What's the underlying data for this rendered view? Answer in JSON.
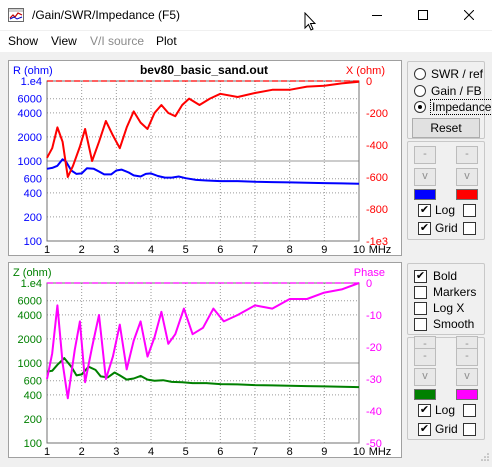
{
  "window": {
    "title": "/Gain/SWR/Impedance (F5)",
    "icon": "chart-app-icon"
  },
  "menu": [
    {
      "label": "Show",
      "enabled": true
    },
    {
      "label": "View",
      "enabled": true
    },
    {
      "label": "V/I source",
      "enabled": false
    },
    {
      "label": "Plot",
      "enabled": true
    }
  ],
  "top_controls": {
    "radios": [
      {
        "label": "SWR / ref",
        "checked": false
      },
      {
        "label": "Gain / FB",
        "checked": false
      },
      {
        "label": "Impedance",
        "checked": true
      }
    ],
    "reset_label": "Reset",
    "series_colors": [
      "#0000ff",
      "#ff0000"
    ],
    "log": {
      "label": "Log",
      "left_checked": true,
      "right_checked": false
    },
    "grid": {
      "label": "Grid",
      "left_checked": true,
      "right_checked": false
    },
    "up_btn": "-",
    "down_btn": "v"
  },
  "bottom_controls": {
    "checks": [
      {
        "label": "Bold",
        "checked": true
      },
      {
        "label": "Markers",
        "checked": false
      },
      {
        "label": "Log X",
        "checked": false
      },
      {
        "label": "Smooth",
        "checked": false
      }
    ],
    "series_colors": [
      "#008000",
      "#ff00ff"
    ],
    "log": {
      "label": "Log",
      "left_checked": true,
      "right_checked": false
    },
    "grid": {
      "label": "Grid",
      "left_checked": true,
      "right_checked": false
    },
    "up_btn": "-",
    "down_btn": "v"
  },
  "chart_data": [
    {
      "type": "line",
      "title": "bev80_basic_sand.out",
      "ylabel": "R (ohm)",
      "y2label": "X (ohm)",
      "xlabel": "MHz",
      "xlim": [
        1,
        10
      ],
      "x_ticks": [
        "1",
        "2",
        "3",
        "4",
        "5",
        "6",
        "7",
        "8",
        "9",
        "10"
      ],
      "y_scale": "log",
      "ylim": [
        100,
        10000
      ],
      "y_ticks": [
        "1.e4",
        "6000",
        "4000",
        "2000",
        "1000",
        "600",
        "400",
        "200",
        "100"
      ],
      "y2lim": [
        -1000,
        0
      ],
      "y2_ticks": [
        "0",
        "-200",
        "-400",
        "-600",
        "-800",
        "-1e3"
      ],
      "grid": true,
      "reference_line_label": "1.e4",
      "series": [
        {
          "name": "R (ohm)",
          "axis": "left",
          "color": "#0000ff",
          "x": [
            1.0,
            1.15,
            1.3,
            1.45,
            1.55,
            1.7,
            1.85,
            2.0,
            2.15,
            2.35,
            2.5,
            2.65,
            2.85,
            3.0,
            3.15,
            3.35,
            3.5,
            3.7,
            3.85,
            4.0,
            4.2,
            4.4,
            4.6,
            4.8,
            5.0,
            5.3,
            5.6,
            6.0,
            6.5,
            7.0,
            7.5,
            8.0,
            8.5,
            9.0,
            9.5,
            10.0
          ],
          "y": [
            800,
            820,
            870,
            1050,
            980,
            760,
            690,
            700,
            810,
            800,
            740,
            680,
            680,
            760,
            780,
            720,
            660,
            640,
            690,
            700,
            650,
            620,
            620,
            640,
            610,
            580,
            570,
            560,
            560,
            550,
            545,
            540,
            535,
            530,
            525,
            520
          ]
        },
        {
          "name": "X (ohm)",
          "axis": "right",
          "color": "#ff0000",
          "x": [
            1.0,
            1.15,
            1.3,
            1.45,
            1.6,
            1.75,
            1.95,
            2.1,
            2.3,
            2.5,
            2.7,
            2.9,
            3.1,
            3.3,
            3.5,
            3.7,
            3.9,
            4.1,
            4.3,
            4.5,
            4.7,
            4.9,
            5.1,
            5.4,
            5.7,
            6.0,
            6.5,
            7.0,
            7.5,
            8.0,
            8.5,
            9.0,
            9.5,
            10.0
          ],
          "y": [
            -480,
            -420,
            -290,
            -380,
            -600,
            -530,
            -410,
            -300,
            -500,
            -380,
            -250,
            -340,
            -420,
            -290,
            -190,
            -260,
            -300,
            -200,
            -150,
            -200,
            -220,
            -150,
            -110,
            -150,
            -110,
            -80,
            -100,
            -75,
            -55,
            -55,
            -35,
            -30,
            -15,
            -5
          ]
        }
      ]
    },
    {
      "type": "line",
      "ylabel": "Z (ohm)",
      "y2label": "Phase",
      "xlabel": "MHz",
      "xlim": [
        1,
        10
      ],
      "x_ticks": [
        "1",
        "2",
        "3",
        "4",
        "5",
        "6",
        "7",
        "8",
        "9",
        "10"
      ],
      "y_scale": "log",
      "ylim": [
        100,
        10000
      ],
      "y_ticks": [
        "1.e4",
        "6000",
        "4000",
        "2000",
        "1000",
        "600",
        "400",
        "200",
        "100"
      ],
      "y2lim": [
        -50,
        0
      ],
      "y2_ticks": [
        "0",
        "-10",
        "-20",
        "-30",
        "-40",
        "-50"
      ],
      "grid": true,
      "series": [
        {
          "name": "Z (ohm)",
          "axis": "left",
          "color": "#008000",
          "x": [
            1.0,
            1.15,
            1.3,
            1.5,
            1.7,
            1.85,
            2.0,
            2.2,
            2.4,
            2.55,
            2.75,
            2.95,
            3.1,
            3.3,
            3.5,
            3.7,
            3.9,
            4.1,
            4.35,
            4.6,
            4.9,
            5.2,
            5.6,
            6.0,
            6.5,
            7.0,
            7.5,
            8.0,
            8.5,
            9.0,
            9.5,
            10.0
          ],
          "y": [
            780,
            800,
            950,
            1150,
            900,
            700,
            720,
            900,
            820,
            680,
            660,
            760,
            700,
            620,
            640,
            690,
            620,
            600,
            610,
            580,
            575,
            560,
            560,
            545,
            540,
            530,
            525,
            520,
            515,
            510,
            505,
            500
          ]
        },
        {
          "name": "Phase",
          "axis": "right",
          "color": "#ff00ff",
          "x": [
            1.0,
            1.15,
            1.3,
            1.45,
            1.6,
            1.8,
            1.95,
            2.1,
            2.3,
            2.5,
            2.7,
            2.9,
            3.1,
            3.3,
            3.5,
            3.7,
            3.9,
            4.1,
            4.3,
            4.5,
            4.7,
            4.95,
            5.2,
            5.5,
            5.8,
            6.1,
            6.5,
            7.0,
            7.5,
            8.0,
            8.5,
            9.0,
            9.5,
            10.0
          ],
          "y": [
            -30,
            -22,
            -7,
            -25,
            -36,
            -21,
            -12,
            -31,
            -20,
            -10,
            -30,
            -23,
            -13,
            -27,
            -18,
            -12,
            -23,
            -17,
            -9,
            -19,
            -16,
            -8,
            -16,
            -14,
            -8,
            -12,
            -10,
            -7,
            -8,
            -5,
            -5,
            -3,
            -2,
            0
          ]
        }
      ]
    }
  ]
}
